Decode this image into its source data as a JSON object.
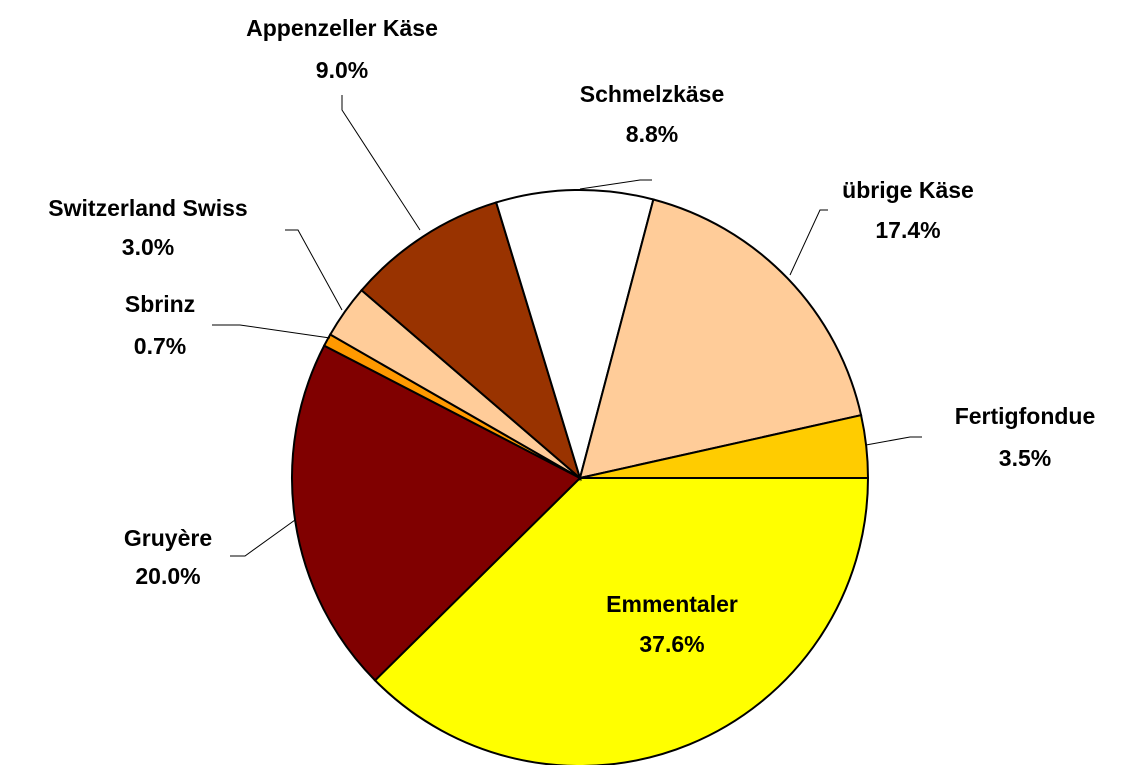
{
  "chart_data": {
    "type": "pie",
    "categories": [
      "Emmentaler",
      "Gruyère",
      "Sbrinz",
      "Switzerland Swiss",
      "Appenzeller Käse",
      "Schmelzkäse",
      "übrige Käse",
      "Fertigfondue"
    ],
    "values": [
      37.6,
      20,
      0.7,
      3,
      9,
      8.8,
      17.4,
      3.5
    ],
    "value_labels": [
      "37.6%",
      "20.0%",
      "0.7%",
      "3.0%",
      "9.0%",
      "8.8%",
      "17.4%",
      "3.5%"
    ],
    "colors": [
      "#ffff00",
      "#800000",
      "#ff9900",
      "#ffcc99",
      "#993300",
      "#ffffff",
      "#ffcc99",
      "#ffcc00"
    ]
  }
}
